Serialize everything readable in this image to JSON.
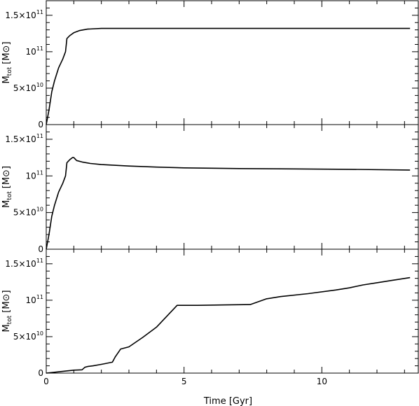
{
  "chart_data": [
    {
      "type": "line",
      "panel": "top",
      "ylabel_main": "M",
      "ylabel_sub": "tot",
      "ylabel_unit": "[M⊙]",
      "xlim": [
        0,
        13.5
      ],
      "ylim": [
        0,
        170000000000.0
      ],
      "yticks": [
        {
          "value": 0,
          "label": "0",
          "sup": ""
        },
        {
          "value": 50000000000.0,
          "label": "5×10",
          "sup": "10"
        },
        {
          "value": 100000000000.0,
          "label": "10",
          "sup": "11"
        },
        {
          "value": 150000000000.0,
          "label": "1.5×10",
          "sup": "11"
        }
      ],
      "series": [
        {
          "x": [
            0.0,
            0.1,
            0.2,
            0.3,
            0.45,
            0.6,
            0.7,
            0.75,
            0.85,
            1.0,
            1.2,
            1.5,
            2.0,
            3.0,
            5.0,
            8.0,
            11.0,
            13.2
          ],
          "y": [
            0.0,
            20000000000.0,
            45000000000.0,
            60000000000.0,
            78000000000.0,
            90000000000.0,
            100000000000.0,
            118000000000.0,
            122000000000.0,
            126000000000.0,
            129000000000.0,
            131000000000.0,
            132000000000.0,
            132000000000.0,
            132000000000.0,
            132000000000.0,
            132000000000.0,
            132000000000.0
          ]
        }
      ]
    },
    {
      "type": "line",
      "panel": "middle",
      "ylabel_main": "M",
      "ylabel_sub": "tot",
      "ylabel_unit": "[M⊙]",
      "xlim": [
        0,
        13.5
      ],
      "ylim": [
        0,
        170000000000.0
      ],
      "yticks": [
        {
          "value": 0,
          "label": "0",
          "sup": ""
        },
        {
          "value": 50000000000.0,
          "label": "5×10",
          "sup": "10"
        },
        {
          "value": 100000000000.0,
          "label": "10",
          "sup": "11"
        },
        {
          "value": 150000000000.0,
          "label": "1.5×10",
          "sup": "11"
        }
      ],
      "series": [
        {
          "x": [
            0.0,
            0.1,
            0.2,
            0.3,
            0.45,
            0.6,
            0.7,
            0.75,
            0.85,
            0.95,
            1.0,
            1.1,
            1.3,
            1.6,
            2.0,
            3.0,
            4.0,
            5.0,
            7.0,
            9.0,
            11.0,
            13.2
          ],
          "y": [
            0.0,
            20000000000.0,
            45000000000.0,
            60000000000.0,
            78000000000.0,
            90000000000.0,
            100000000000.0,
            118000000000.0,
            122000000000.0,
            125000000000.0,
            125000000000.0,
            121000000000.0,
            119000000000.0,
            117000000000.0,
            115500000000.0,
            113500000000.0,
            112000000000.0,
            111000000000.0,
            110000000000.0,
            109500000000.0,
            109000000000.0,
            108000000000.0
          ]
        }
      ]
    },
    {
      "type": "line",
      "panel": "bottom",
      "ylabel_main": "M",
      "ylabel_sub": "tot",
      "ylabel_unit": "[M⊙]",
      "xlabel": "Time [Gyr]",
      "xlim": [
        0,
        13.5
      ],
      "ylim": [
        0,
        170000000000.0
      ],
      "xticks": [
        {
          "value": 0,
          "label": "0"
        },
        {
          "value": 5,
          "label": "5"
        },
        {
          "value": 10,
          "label": "10"
        }
      ],
      "yticks": [
        {
          "value": 0,
          "label": "0",
          "sup": ""
        },
        {
          "value": 50000000000.0,
          "label": "5×10",
          "sup": "10"
        },
        {
          "value": 100000000000.0,
          "label": "10",
          "sup": "11"
        },
        {
          "value": 150000000000.0,
          "label": "1.5×10",
          "sup": "11"
        }
      ],
      "series": [
        {
          "x": [
            0.0,
            0.5,
            1.0,
            1.3,
            1.4,
            1.5,
            1.7,
            2.0,
            2.4,
            2.5,
            2.7,
            3.0,
            3.5,
            4.0,
            4.5,
            4.75,
            5.5,
            6.5,
            7.4,
            8.0,
            8.5,
            9.5,
            10.5,
            11.0,
            11.5,
            12.0,
            12.5,
            13.2
          ],
          "y": [
            0.0,
            2000000000.0,
            4000000000.0,
            4500000000.0,
            8000000000.0,
            9000000000.0,
            10000000000.0,
            12000000000.0,
            15000000000.0,
            22000000000.0,
            33000000000.0,
            36000000000.0,
            49000000000.0,
            63000000000.0,
            83000000000.0,
            93000000000.0,
            93000000000.0,
            93500000000.0,
            94000000000.0,
            102000000000.0,
            105000000000.0,
            109000000000.0,
            114000000000.0,
            117000000000.0,
            121000000000.0,
            124000000000.0,
            127000000000.0,
            131000000000.0
          ]
        }
      ]
    }
  ]
}
